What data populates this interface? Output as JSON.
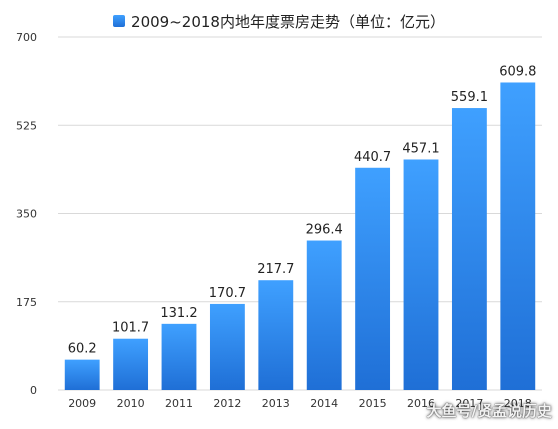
{
  "chart_data": {
    "type": "bar",
    "categories": [
      "2009",
      "2010",
      "2011",
      "2012",
      "2013",
      "2014",
      "2015",
      "2016",
      "2017",
      "2018"
    ],
    "values": [
      60.2,
      101.7,
      131.2,
      170.7,
      217.7,
      296.4,
      440.7,
      457.1,
      559.1,
      609.8
    ],
    "value_labels": [
      "60.2",
      "101.7",
      "131.2",
      "170.7",
      "217.7",
      "296.4",
      "440.7",
      "457.1",
      "559.1",
      "609.8"
    ],
    "y_ticks": [
      0,
      175,
      350,
      525,
      700
    ],
    "y_tick_labels": [
      "0",
      "175",
      "350",
      "525",
      "700"
    ],
    "ylim": [
      0,
      700
    ],
    "legend": "2009~2018内地年度票房走势（单位：亿元）",
    "legend_position": "top-center",
    "grid": true,
    "colors": {
      "bar_top": "#3fa0ff",
      "bar_bottom": "#1f6fd6",
      "grid": "#d9d9d9"
    }
  },
  "watermark": "大鱼号/贤孟说历史"
}
